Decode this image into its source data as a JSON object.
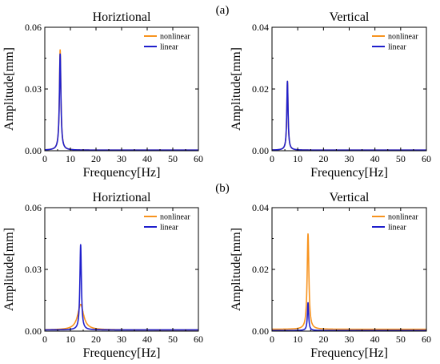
{
  "row_labels": [
    "(a)",
    "(b)"
  ],
  "colors": {
    "nonlinear": "#F7931E",
    "linear": "#1F1FCC",
    "frame": "#000000"
  },
  "chart_data": [
    {
      "type": "line",
      "row": "(a)",
      "title": "Horiztional",
      "xlabel": "Frequency[Hz]",
      "ylabel": "Amplitude[mm]",
      "xlim": [
        0,
        60
      ],
      "ylim": [
        0,
        0.06
      ],
      "xticks": [
        0,
        10,
        20,
        30,
        40,
        50,
        60
      ],
      "yticks": [
        0.0,
        0.03,
        0.06
      ],
      "ytick_labels": [
        "0.00",
        "0.03",
        "0.06"
      ],
      "legend_position": "top-right",
      "series": [
        {
          "name": "nonlinear",
          "color": "#F7931E",
          "peak_x": 6.0,
          "peak_y": 0.049,
          "width": 0.35,
          "baseline": 0.0003
        },
        {
          "name": "linear",
          "color": "#1F1FCC",
          "peak_x": 6.0,
          "peak_y": 0.047,
          "width": 0.35,
          "baseline": 0.0003
        }
      ]
    },
    {
      "type": "line",
      "row": "(a)",
      "title": "Vertical",
      "xlabel": "Frequency[Hz]",
      "ylabel": "Amplitude[mm]",
      "xlim": [
        0,
        60
      ],
      "ylim": [
        0,
        0.04
      ],
      "xticks": [
        0,
        10,
        20,
        30,
        40,
        50,
        60
      ],
      "yticks": [
        0.0,
        0.02,
        0.04
      ],
      "ytick_labels": [
        "0.00",
        "0.02",
        "0.04"
      ],
      "legend_position": "top-right",
      "series": [
        {
          "name": "nonlinear",
          "color": "#F7931E",
          "peak_x": 6.0,
          "peak_y": 0.0225,
          "width": 0.3,
          "baseline": 0.0002
        },
        {
          "name": "linear",
          "color": "#1F1FCC",
          "peak_x": 6.0,
          "peak_y": 0.0225,
          "width": 0.3,
          "baseline": 0.0002
        }
      ]
    },
    {
      "type": "line",
      "row": "(b)",
      "title": "Horiztional",
      "xlabel": "Frequency[Hz]",
      "ylabel": "Amplitude[mm]",
      "xlim": [
        0,
        60
      ],
      "ylim": [
        0,
        0.06
      ],
      "xticks": [
        0,
        10,
        20,
        30,
        40,
        50,
        60
      ],
      "yticks": [
        0.0,
        0.03,
        0.06
      ],
      "ytick_labels": [
        "0.00",
        "0.03",
        "0.06"
      ],
      "legend_position": "top-right",
      "series": [
        {
          "name": "nonlinear",
          "color": "#F7931E",
          "peak_x": 14.0,
          "peak_y": 0.013,
          "width": 1.4,
          "baseline": 0.0006
        },
        {
          "name": "linear",
          "color": "#1F1FCC",
          "peak_x": 14.0,
          "peak_y": 0.042,
          "width": 0.35,
          "baseline": 0.0006
        }
      ]
    },
    {
      "type": "line",
      "row": "(b)",
      "title": "Vertical",
      "xlabel": "Frequency[Hz]",
      "ylabel": "Amplitude[mm]",
      "xlim": [
        0,
        60
      ],
      "ylim": [
        0,
        0.04
      ],
      "xticks": [
        0,
        10,
        20,
        30,
        40,
        50,
        60
      ],
      "yticks": [
        0.0,
        0.02,
        0.04
      ],
      "ytick_labels": [
        "0.00",
        "0.02",
        "0.04"
      ],
      "legend_position": "top-right",
      "series": [
        {
          "name": "nonlinear",
          "color": "#F7931E",
          "peak_x": 14.0,
          "peak_y": 0.0315,
          "width": 0.4,
          "baseline": 0.0006
        },
        {
          "name": "linear",
          "color": "#1F1FCC",
          "peak_x": 14.0,
          "peak_y": 0.0092,
          "width": 0.3,
          "baseline": 0.0002
        }
      ]
    }
  ]
}
